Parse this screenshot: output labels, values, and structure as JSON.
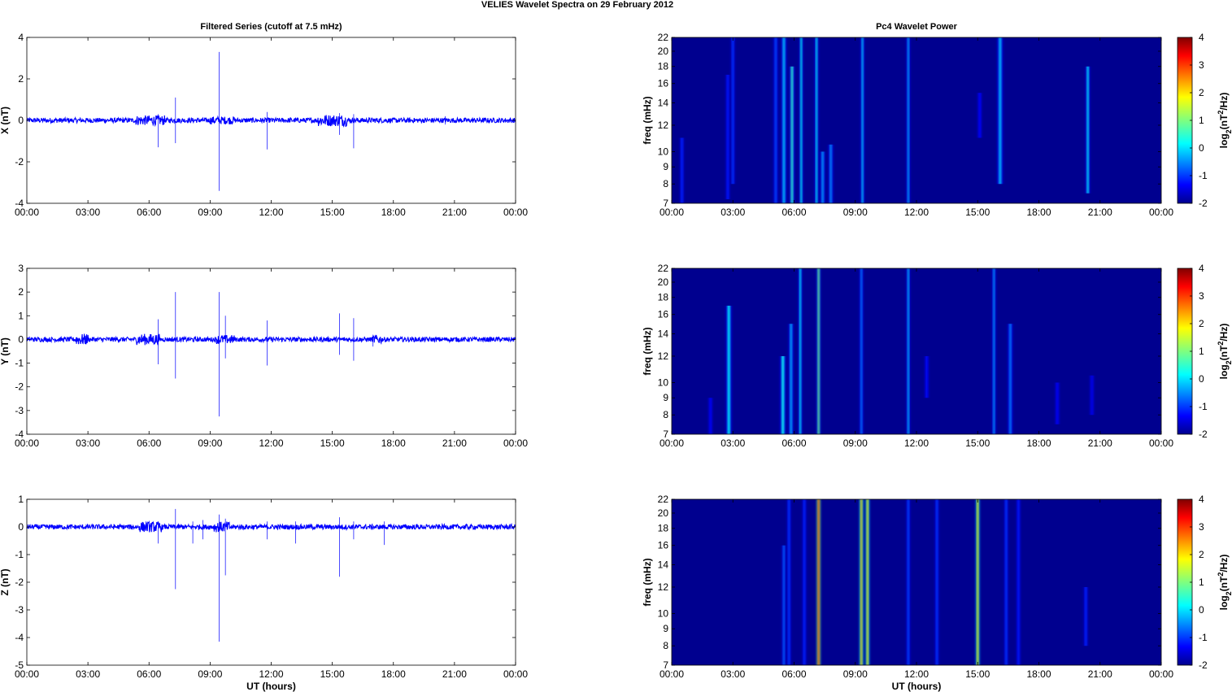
{
  "figure_title": "VELIES Wavelet Spectra on 29 February  2012",
  "colors": {
    "trace": "#0000ff",
    "spectrogram_background": "#00008f"
  },
  "chart_data": [
    {
      "type": "line",
      "panel": "X",
      "title": "Filtered Series (cutoff at 7.5 mHz)",
      "ylabel": "X (nT)",
      "xlabel": "",
      "ylim": [
        -4,
        4
      ],
      "yticks": [
        "4",
        "2",
        "0",
        "-2",
        "-4"
      ],
      "ytick_values": [
        4,
        2,
        0,
        -2,
        -4
      ],
      "xlim_hours": [
        0,
        24
      ],
      "xticks": [
        "00:00",
        "03:00",
        "06:00",
        "09:00",
        "12:00",
        "15:00",
        "18:00",
        "21:00",
        "00:00"
      ],
      "noise_amplitude": 0.12,
      "active_intervals_hours": [
        [
          5.3,
          6.8,
          0.15
        ],
        [
          9.0,
          10.2,
          0.12
        ],
        [
          14.3,
          15.7,
          0.18
        ]
      ],
      "spikes": [
        {
          "t": 6.45,
          "min": -1.3,
          "max": 0.3
        },
        {
          "t": 7.3,
          "min": -1.1,
          "max": 1.1
        },
        {
          "t": 9.45,
          "min": -3.4,
          "max": 3.3
        },
        {
          "t": 11.8,
          "min": -1.4,
          "max": 0.4
        },
        {
          "t": 15.35,
          "min": -0.7,
          "max": 0.35
        },
        {
          "t": 16.05,
          "min": -1.35,
          "max": 0.3
        },
        {
          "t": 20.55,
          "min": -0.2,
          "max": 0.2
        }
      ]
    },
    {
      "type": "line",
      "panel": "Y",
      "title": "",
      "ylabel": "Y (nT)",
      "xlabel": "",
      "ylim": [
        -4,
        3
      ],
      "yticks": [
        "3",
        "2",
        "1",
        "0",
        "-1",
        "-2",
        "-3",
        "-4"
      ],
      "ytick_values": [
        3,
        2,
        1,
        0,
        -1,
        -2,
        -3,
        -4
      ],
      "xlim_hours": [
        0,
        24
      ],
      "xticks": [
        "00:00",
        "03:00",
        "06:00",
        "09:00",
        "12:00",
        "15:00",
        "18:00",
        "21:00",
        "00:00"
      ],
      "noise_amplitude": 0.1,
      "active_intervals_hours": [
        [
          2.4,
          3.0,
          0.15
        ],
        [
          5.4,
          6.5,
          0.15
        ],
        [
          9.3,
          10.2,
          0.12
        ],
        [
          17.0,
          17.4,
          0.12
        ]
      ],
      "spikes": [
        {
          "t": 6.45,
          "min": -1.05,
          "max": 0.85
        },
        {
          "t": 7.3,
          "min": -1.65,
          "max": 2.0
        },
        {
          "t": 9.45,
          "min": -3.25,
          "max": 2.0
        },
        {
          "t": 9.75,
          "min": -0.8,
          "max": 1.0
        },
        {
          "t": 11.8,
          "min": -1.1,
          "max": 0.8
        },
        {
          "t": 15.35,
          "min": -0.65,
          "max": 1.1
        },
        {
          "t": 16.05,
          "min": -0.9,
          "max": 0.9
        },
        {
          "t": 17.0,
          "min": -0.3,
          "max": 0.2
        }
      ]
    },
    {
      "type": "line",
      "panel": "Z",
      "title": "",
      "ylabel": "Z (nT)",
      "xlabel": "UT (hours)",
      "ylim": [
        -5,
        1
      ],
      "yticks": [
        "1",
        "0",
        "-1",
        "-2",
        "-3",
        "-4",
        "-5"
      ],
      "ytick_values": [
        1,
        0,
        -1,
        -2,
        -3,
        -4,
        -5
      ],
      "xlim_hours": [
        0,
        24
      ],
      "xticks": [
        "00:00",
        "03:00",
        "06:00",
        "09:00",
        "12:00",
        "15:00",
        "18:00",
        "21:00",
        "00:00"
      ],
      "noise_amplitude": 0.09,
      "active_intervals_hours": [
        [
          5.5,
          6.6,
          0.12
        ],
        [
          9.2,
          10.0,
          0.12
        ]
      ],
      "spikes": [
        {
          "t": 6.45,
          "min": -0.6,
          "max": 0.2
        },
        {
          "t": 7.3,
          "min": -2.25,
          "max": 0.65
        },
        {
          "t": 8.15,
          "min": -0.6,
          "max": 0.2
        },
        {
          "t": 8.65,
          "min": -0.45,
          "max": 0.25
        },
        {
          "t": 9.45,
          "min": -4.15,
          "max": 0.45
        },
        {
          "t": 9.75,
          "min": -1.75,
          "max": 0.3
        },
        {
          "t": 11.8,
          "min": -0.45,
          "max": 0.2
        },
        {
          "t": 13.2,
          "min": -0.6,
          "max": 0.2
        },
        {
          "t": 15.35,
          "min": -1.8,
          "max": 0.35
        },
        {
          "t": 16.05,
          "min": -0.45,
          "max": 0.2
        },
        {
          "t": 17.55,
          "min": -0.65,
          "max": 0.2
        }
      ]
    },
    {
      "type": "heatmap",
      "panel": "X",
      "title": "Pc4 Wavelet Power",
      "ylabel": "freq (mHz)",
      "xlabel": "",
      "yscale": "log",
      "ylim_mhz": [
        7,
        22
      ],
      "yticks": [
        "22",
        "20",
        "18",
        "16",
        "14",
        "12",
        "10",
        "9",
        "8",
        "7"
      ],
      "ytick_values": [
        22,
        20,
        18,
        16,
        14,
        12,
        10,
        9,
        8,
        7
      ],
      "xlim_hours": [
        0,
        24
      ],
      "xticks": [
        "00:00",
        "03:00",
        "06:00",
        "09:00",
        "12:00",
        "15:00",
        "18:00",
        "21:00",
        "00:00"
      ],
      "colorbar_label": "log2(nT2/Hz)",
      "colorbar_range": [
        -2,
        4
      ],
      "colorbar_ticks": [
        "4",
        "3",
        "2",
        "1",
        "0",
        "-1",
        "-2"
      ],
      "colorbar_tick_values": [
        4,
        3,
        2,
        1,
        0,
        -1,
        -2
      ],
      "streaks": [
        {
          "t": 0.5,
          "fmin": 7,
          "fmax": 11,
          "power": -1.0,
          "width": 0.07
        },
        {
          "t": 2.75,
          "fmin": 7.2,
          "fmax": 17,
          "power": -1.1,
          "width": 0.08
        },
        {
          "t": 3.0,
          "fmin": 8,
          "fmax": 22,
          "power": -0.9,
          "width": 0.07
        },
        {
          "t": 5.1,
          "fmin": 7,
          "fmax": 22,
          "power": -0.8,
          "width": 0.09
        },
        {
          "t": 5.5,
          "fmin": 7,
          "fmax": 22,
          "power": -0.1,
          "width": 0.11
        },
        {
          "t": 5.9,
          "fmin": 7,
          "fmax": 18,
          "power": 0.5,
          "width": 0.1
        },
        {
          "t": 6.35,
          "fmin": 7,
          "fmax": 22,
          "power": 0.3,
          "width": 0.06
        },
        {
          "t": 7.1,
          "fmin": 7,
          "fmax": 22,
          "power": 0.2,
          "width": 0.06
        },
        {
          "t": 7.4,
          "fmin": 7,
          "fmax": 10,
          "power": -0.3,
          "width": 0.1
        },
        {
          "t": 7.8,
          "fmin": 7,
          "fmax": 10.5,
          "power": -0.4,
          "width": 0.1
        },
        {
          "t": 9.35,
          "fmin": 7,
          "fmax": 22,
          "power": 0.0,
          "width": 0.05
        },
        {
          "t": 11.6,
          "fmin": 7,
          "fmax": 22,
          "power": -0.2,
          "width": 0.05
        },
        {
          "t": 15.1,
          "fmin": 11,
          "fmax": 15,
          "power": -1.2,
          "width": 0.07
        },
        {
          "t": 16.1,
          "fmin": 8,
          "fmax": 22,
          "power": -0.1,
          "width": 0.12
        },
        {
          "t": 20.4,
          "fmin": 7.5,
          "fmax": 18,
          "power": 0.2,
          "width": 0.09
        }
      ]
    },
    {
      "type": "heatmap",
      "panel": "Y",
      "title": "",
      "ylabel": "freq (mHz)",
      "xlabel": "",
      "yscale": "log",
      "ylim_mhz": [
        7,
        22
      ],
      "yticks": [
        "22",
        "20",
        "18",
        "16",
        "14",
        "12",
        "10",
        "9",
        "8",
        "7"
      ],
      "ytick_values": [
        22,
        20,
        18,
        16,
        14,
        12,
        10,
        9,
        8,
        7
      ],
      "xlim_hours": [
        0,
        24
      ],
      "xticks": [
        "00:00",
        "03:00",
        "06:00",
        "09:00",
        "12:00",
        "15:00",
        "18:00",
        "21:00",
        "00:00"
      ],
      "colorbar_label": "log2(nT2/Hz)",
      "colorbar_range": [
        -2,
        4
      ],
      "colorbar_ticks": [
        "4",
        "3",
        "2",
        "1",
        "0",
        "-1",
        "-2"
      ],
      "colorbar_tick_values": [
        4,
        3,
        2,
        1,
        0,
        -1,
        -2
      ],
      "streaks": [
        {
          "t": 1.9,
          "fmin": 7,
          "fmax": 9,
          "power": -1.3,
          "width": 0.07
        },
        {
          "t": 2.8,
          "fmin": 7,
          "fmax": 17,
          "power": 0.2,
          "width": 0.12
        },
        {
          "t": 5.45,
          "fmin": 7,
          "fmax": 12,
          "power": 0.3,
          "width": 0.12
        },
        {
          "t": 5.85,
          "fmin": 7,
          "fmax": 15,
          "power": -0.2,
          "width": 0.1
        },
        {
          "t": 6.3,
          "fmin": 7,
          "fmax": 22,
          "power": 0.2,
          "width": 0.06
        },
        {
          "t": 7.2,
          "fmin": 7,
          "fmax": 22,
          "power": 0.9,
          "width": 0.06
        },
        {
          "t": 9.3,
          "fmin": 7,
          "fmax": 22,
          "power": -0.5,
          "width": 0.05
        },
        {
          "t": 11.6,
          "fmin": 7,
          "fmax": 22,
          "power": -0.1,
          "width": 0.05
        },
        {
          "t": 12.5,
          "fmin": 9,
          "fmax": 12,
          "power": -1.2,
          "width": 0.06
        },
        {
          "t": 15.8,
          "fmin": 7,
          "fmax": 22,
          "power": -0.3,
          "width": 0.06
        },
        {
          "t": 16.6,
          "fmin": 7,
          "fmax": 15,
          "power": -0.5,
          "width": 0.1
        },
        {
          "t": 18.9,
          "fmin": 7.5,
          "fmax": 10,
          "power": -1.3,
          "width": 0.06
        },
        {
          "t": 20.6,
          "fmin": 8,
          "fmax": 10.5,
          "power": -1.4,
          "width": 0.06
        }
      ]
    },
    {
      "type": "heatmap",
      "panel": "Z",
      "title": "",
      "ylabel": "freq (mHz)",
      "xlabel": "UT (hours)",
      "yscale": "log",
      "ylim_mhz": [
        7,
        22
      ],
      "yticks": [
        "22",
        "20",
        "18",
        "16",
        "14",
        "12",
        "10",
        "9",
        "8",
        "7"
      ],
      "ytick_values": [
        22,
        20,
        18,
        16,
        14,
        12,
        10,
        9,
        8,
        7
      ],
      "xlim_hours": [
        0,
        24
      ],
      "xticks": [
        "00:00",
        "03:00",
        "06:00",
        "09:00",
        "12:00",
        "15:00",
        "18:00",
        "21:00",
        "00:00"
      ],
      "colorbar_label": "log2(nT2/Hz)",
      "colorbar_range": [
        -2,
        4
      ],
      "colorbar_ticks": [
        "4",
        "3",
        "2",
        "1",
        "0",
        "-1",
        "-2"
      ],
      "colorbar_tick_values": [
        4,
        3,
        2,
        1,
        0,
        -1,
        -2
      ],
      "streaks": [
        {
          "t": 5.5,
          "fmin": 7,
          "fmax": 16,
          "power": -0.6,
          "width": 0.08
        },
        {
          "t": 5.75,
          "fmin": 7,
          "fmax": 22,
          "power": -0.9,
          "width": 0.06
        },
        {
          "t": 6.5,
          "fmin": 7,
          "fmax": 22,
          "power": -1.0,
          "width": 0.06
        },
        {
          "t": 7.2,
          "fmin": 7,
          "fmax": 22,
          "power": 2.6,
          "width": 0.06
        },
        {
          "t": 9.3,
          "fmin": 7,
          "fmax": 22,
          "power": 2.0,
          "width": 0.07
        },
        {
          "t": 9.6,
          "fmin": 7,
          "fmax": 22,
          "power": 1.8,
          "width": 0.06
        },
        {
          "t": 11.6,
          "fmin": 7,
          "fmax": 22,
          "power": -0.8,
          "width": 0.05
        },
        {
          "t": 13.0,
          "fmin": 7,
          "fmax": 22,
          "power": -0.9,
          "width": 0.05
        },
        {
          "t": 15.0,
          "fmin": 7,
          "fmax": 22,
          "power": 1.7,
          "width": 0.06
        },
        {
          "t": 16.4,
          "fmin": 7,
          "fmax": 22,
          "power": -0.9,
          "width": 0.05
        },
        {
          "t": 17.0,
          "fmin": 7,
          "fmax": 22,
          "power": -1.1,
          "width": 0.05
        },
        {
          "t": 20.3,
          "fmin": 8,
          "fmax": 12,
          "power": -1.0,
          "width": 0.06
        }
      ]
    }
  ]
}
